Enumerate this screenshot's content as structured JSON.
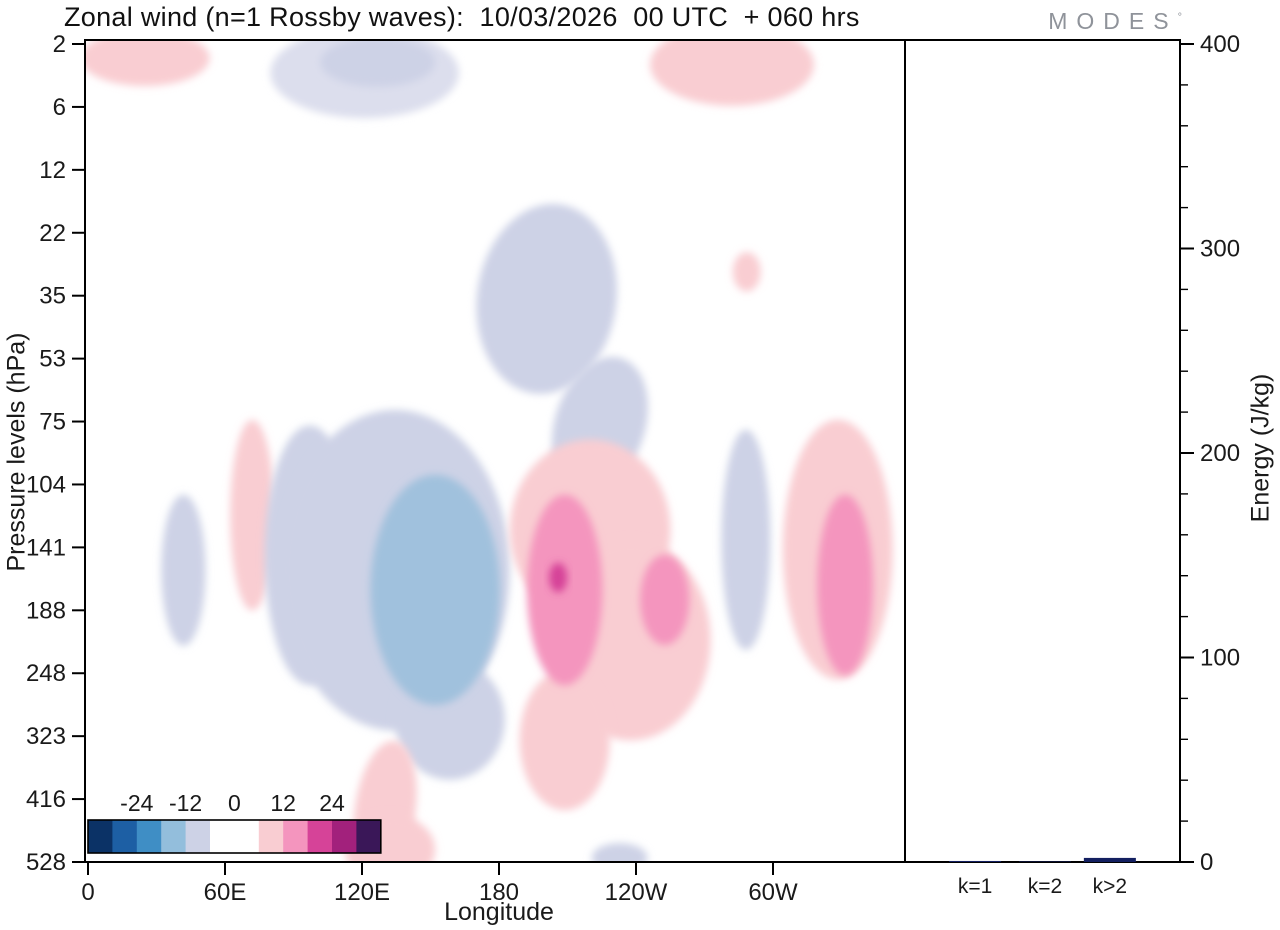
{
  "title": "Zonal wind (n=1 Rossby waves):  10/03/2026  00 UTC  + 060 hrs",
  "logo": {
    "text": "MODES",
    "degree": "°"
  },
  "axes": {
    "left_label": "Pressure levels (hPa)",
    "right_label": "Energy (J/kg)",
    "bottom_label": "Longitude"
  },
  "colors": {
    "frame": "#000000",
    "bar": "#131f60",
    "logo_gray": "#8f939a"
  },
  "chart_data": [
    {
      "type": "heatmap",
      "subtype": "filled_contour_longitude_pressure",
      "title": "Zonal wind (n=1 Rossby waves): 10/03/2026 00 UTC + 060 hrs",
      "xlabel": "Longitude",
      "ylabel": "Pressure levels (hPa)",
      "x_ticks": [
        "0",
        "60E",
        "120E",
        "180",
        "120W",
        "60W"
      ],
      "y_ticks": [
        "2",
        "6",
        "12",
        "22",
        "35",
        "53",
        "75",
        "104",
        "141",
        "188",
        "248",
        "323",
        "416",
        "528"
      ],
      "grid": false,
      "colorbar": {
        "levels": [
          -36,
          -30,
          -24,
          -18,
          -12,
          -6,
          0,
          6,
          12,
          18,
          24,
          30,
          36
        ],
        "tick_labels": [
          "-24",
          "-12",
          "0",
          "12",
          "24"
        ],
        "colors": [
          "#0b3266",
          "#1d5fa4",
          "#3f8ec5",
          "#93bedc",
          "#cdd2e6",
          "#ffffff",
          "#ffffff",
          "#f9cdd2",
          "#f495be",
          "#d64398",
          "#a2217c",
          "#3a1758"
        ],
        "position": "bottom-left-inside"
      },
      "palette": {
        "lav_light": "#dcdeed",
        "lav": "#cdd2e6",
        "blue": "#a0c1dd",
        "pink": "#f9cdd2",
        "pink_med": "#f495be",
        "magenta": "#d64398"
      },
      "features": [
        {
          "anomaly": "positive",
          "lon_range": "10E-40E",
          "pressure_range_hPa": "2-4",
          "peak_level": 7
        },
        {
          "anomaly": "negative",
          "lon_range": "85E-160E",
          "pressure_range_hPa": "2-7",
          "peak_level": -9
        },
        {
          "anomaly": "positive",
          "lon_range": "115W-50W",
          "pressure_range_hPa": "2-6",
          "peak_level": 8
        },
        {
          "anomaly": "negative",
          "lon_range": "175E-125W",
          "pressure_range_hPa": "20-100",
          "peak_level": -8
        },
        {
          "anomaly": "positive",
          "lon_range": "74W-69W",
          "pressure_range_hPa": "28-38",
          "peak_level": 7
        },
        {
          "anomaly": "negative",
          "lon_range": "38E-46E",
          "pressure_range_hPa": "100-230",
          "peak_level": -7
        },
        {
          "anomaly": "positive",
          "lon_range": "68E-76E",
          "pressure_range_hPa": "75-200",
          "peak_level": 7
        },
        {
          "anomaly": "negative",
          "lon_range": "85E-110E",
          "pressure_range_hPa": "75-300",
          "peak_level": -8
        },
        {
          "anomaly": "negative",
          "lon_range": "125E-175E",
          "pressure_range_hPa": "75-330",
          "peak_level": -14
        },
        {
          "anomaly": "positive",
          "lon_range": "170W-85W",
          "pressure_range_hPa": "80-400",
          "peak_level": 20,
          "note": "magenta maximum near 155W at ~160 hPa; secondary core near 107W"
        },
        {
          "anomaly": "negative",
          "lon_range": "75W-68W",
          "pressure_range_hPa": "90-280",
          "peak_level": -7
        },
        {
          "anomaly": "positive",
          "lon_range": "52W-10W",
          "pressure_range_hPa": "75-300",
          "peak_level": 14,
          "note": "core near 30W, 120-280 hPa"
        },
        {
          "anomaly": "positive",
          "lon_range": "120E-140E",
          "pressure_range_hPa": "350-528",
          "peak_level": 7
        },
        {
          "anomaly": "negative",
          "lon_range": "130W-120W",
          "pressure_range_hPa": "500-528",
          "peak_level": -7
        }
      ],
      "blobs": [
        [
          0.073,
          0.022,
          0.079,
          0.034,
          0,
          "pink"
        ],
        [
          0.341,
          0.04,
          0.115,
          0.055,
          0,
          "lav_light"
        ],
        [
          0.357,
          0.027,
          0.07,
          0.03,
          0,
          "lav"
        ],
        [
          0.789,
          0.03,
          0.1,
          0.05,
          0,
          "pink"
        ],
        [
          0.563,
          0.315,
          0.085,
          0.116,
          8,
          "lav"
        ],
        [
          0.628,
          0.468,
          0.055,
          0.085,
          18,
          "lav"
        ],
        [
          0.807,
          0.282,
          0.017,
          0.024,
          0,
          "pink"
        ],
        [
          0.12,
          0.645,
          0.027,
          0.092,
          0,
          "lav"
        ],
        [
          0.204,
          0.578,
          0.027,
          0.116,
          0,
          "pink"
        ],
        [
          0.274,
          0.627,
          0.055,
          0.158,
          0,
          "lav"
        ],
        [
          0.378,
          0.645,
          0.14,
          0.195,
          0,
          "lav"
        ],
        [
          0.445,
          0.827,
          0.067,
          0.073,
          0,
          "lav"
        ],
        [
          0.427,
          0.669,
          0.079,
          0.14,
          0,
          "blue"
        ],
        [
          0.616,
          0.596,
          0.098,
          0.11,
          0,
          "pink"
        ],
        [
          0.665,
          0.73,
          0.098,
          0.122,
          0,
          "pink"
        ],
        [
          0.585,
          0.852,
          0.055,
          0.085,
          0,
          "pink"
        ],
        [
          0.585,
          0.669,
          0.046,
          0.116,
          0,
          "pink_med"
        ],
        [
          0.577,
          0.654,
          0.011,
          0.018,
          0,
          "magenta"
        ],
        [
          0.707,
          0.681,
          0.03,
          0.055,
          0,
          "pink_med"
        ],
        [
          0.806,
          0.608,
          0.03,
          0.134,
          0,
          "lav"
        ],
        [
          0.918,
          0.62,
          0.067,
          0.158,
          0,
          "pink"
        ],
        [
          0.927,
          0.663,
          0.034,
          0.11,
          0,
          "pink_med"
        ],
        [
          0.366,
          0.937,
          0.037,
          0.085,
          8,
          "pink"
        ],
        [
          0.372,
          0.985,
          0.055,
          0.043,
          0,
          "pink"
        ],
        [
          0.652,
          0.995,
          0.034,
          0.018,
          0,
          "lav"
        ]
      ]
    },
    {
      "type": "bar",
      "categories": [
        "k=1",
        "k=2",
        "k>2"
      ],
      "values": [
        0.5,
        0.2,
        2.0
      ],
      "ylabel": "Energy (J/kg)",
      "ylim": [
        0,
        400
      ],
      "y_ticks": [
        0,
        100,
        200,
        300,
        400
      ],
      "minor_tick_step": 20,
      "bar_color": "#131f60"
    }
  ]
}
